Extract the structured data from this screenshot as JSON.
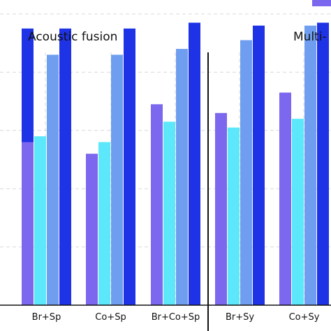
{
  "chart_data": {
    "type": "bar",
    "panels": [
      {
        "title": "Acoustic fusion"
      },
      {
        "title": "Multi-"
      }
    ],
    "categories": [
      "",
      "Br+Sp",
      "Co+Sp",
      "Br+Co+Sp",
      "Br+Sy",
      "Co+Sy",
      ""
    ],
    "series_colors": [
      "#7b68ee",
      "#5ce8fa",
      "#6f9ef0",
      "#1e32e6"
    ],
    "values": [
      [
        null,
        null,
        null,
        0.95
      ],
      [
        0.56,
        0.58,
        0.86,
        0.95
      ],
      [
        0.52,
        0.56,
        0.86,
        0.95
      ],
      [
        0.69,
        0.63,
        0.88,
        0.97
      ],
      [
        0.66,
        0.61,
        0.91,
        0.96
      ],
      [
        0.73,
        0.64,
        0.96,
        0.97
      ],
      [
        null,
        null,
        0.96,
        null
      ]
    ],
    "ylim": [
      0.0,
      1.0
    ],
    "grid": true,
    "legend": "top-right"
  }
}
